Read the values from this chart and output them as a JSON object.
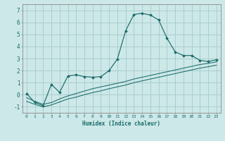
{
  "xlabel": "Humidex (Indice chaleur)",
  "background_color": "#cde8e8",
  "grid_color": "#aacece",
  "line_color": "#1a6b6b",
  "x_data": [
    0,
    1,
    2,
    3,
    4,
    5,
    6,
    7,
    8,
    9,
    10,
    11,
    12,
    13,
    14,
    15,
    16,
    17,
    18,
    19,
    20,
    21,
    22,
    23
  ],
  "main_y": [
    0.1,
    -0.65,
    -0.9,
    0.85,
    0.2,
    1.55,
    1.65,
    1.5,
    1.45,
    1.5,
    2.0,
    2.95,
    5.3,
    6.65,
    6.75,
    6.6,
    6.2,
    4.7,
    3.55,
    3.25,
    3.25,
    2.85,
    2.75,
    2.9
  ],
  "line2_y": [
    -0.25,
    -0.55,
    -0.8,
    -0.65,
    -0.35,
    -0.1,
    0.1,
    0.3,
    0.5,
    0.65,
    0.8,
    0.95,
    1.1,
    1.3,
    1.45,
    1.6,
    1.75,
    1.9,
    2.05,
    2.2,
    2.35,
    2.5,
    2.6,
    2.72
  ],
  "line3_y": [
    -0.55,
    -0.8,
    -1.0,
    -0.85,
    -0.6,
    -0.35,
    -0.2,
    0.0,
    0.18,
    0.32,
    0.5,
    0.65,
    0.8,
    1.0,
    1.15,
    1.3,
    1.45,
    1.6,
    1.75,
    1.9,
    2.05,
    2.2,
    2.32,
    2.45
  ],
  "ylim": [
    -1.5,
    7.5
  ],
  "xlim": [
    -0.5,
    23.5
  ],
  "yticks": [
    -1,
    0,
    1,
    2,
    3,
    4,
    5,
    6,
    7
  ],
  "xtick_labels": [
    "0",
    "1",
    "2",
    "3",
    "4",
    "5",
    "6",
    "7",
    "8",
    "9",
    "10",
    "11",
    "12",
    "13",
    "14",
    "15",
    "16",
    "17",
    "18",
    "19",
    "20",
    "21",
    "22",
    "23"
  ]
}
